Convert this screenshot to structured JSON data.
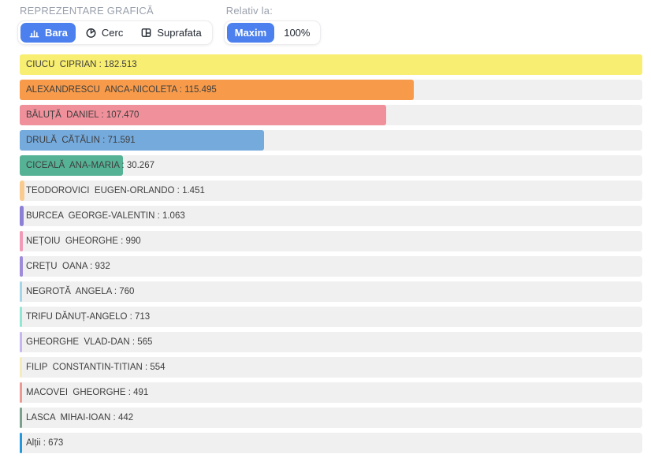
{
  "header": {
    "title": "REPREZENTARE GRAFICĂ",
    "relative_label": "Relativ la:",
    "accent_color": "#4b80ee",
    "chart_type_buttons": [
      {
        "label": "Bara",
        "icon": "bar-chart-icon",
        "active": true
      },
      {
        "label": "Cerc",
        "icon": "pie-chart-icon",
        "active": false
      },
      {
        "label": "Suprafata",
        "icon": "treemap-icon",
        "active": false
      }
    ],
    "relative_buttons": [
      {
        "label": "Maxim",
        "active": true
      },
      {
        "label": "100%",
        "active": false
      }
    ]
  },
  "chart_data": {
    "type": "bar",
    "orientation": "horizontal",
    "relative_to": "Maxim",
    "max_value": 182513,
    "track_color": "#f0f0f1",
    "categories": [
      "CIUCU CIPRIAN",
      "ALEXANDRESCU ANCA-NICOLETA",
      "BĂLUȚĂ DANIEL",
      "DRULĂ CĂTĂLIN",
      "CICEALĂ ANA-MARIA",
      "TEODOROVICI EUGEN-ORLANDO",
      "BURCEA GEORGE-VALENTIN",
      "NEȚOIU GHEORGHE",
      "CREȚU OANA",
      "NEGROTĂ ANGELA",
      "TRIFU DĂNUȚ-ANGELO",
      "GHEORGHE VLAD-DAN",
      "FILIP CONSTANTIN-TITIAN",
      "MACOVEI GHEORGHE",
      "LASCA MIHAI-IOAN",
      "Alții"
    ],
    "values": [
      182513,
      115495,
      107470,
      71591,
      30267,
      1451,
      1063,
      990,
      932,
      760,
      713,
      565,
      554,
      491,
      442,
      673
    ],
    "rows": [
      {
        "label": "CIUCU  CIPRIAN : 182.513",
        "color": "#f8ee71"
      },
      {
        "label": "ALEXANDRESCU  ANCA-NICOLETA : 115.495",
        "color": "#f79b4b"
      },
      {
        "label": "BĂLUȚĂ  DANIEL : 107.470",
        "color": "#f0909b"
      },
      {
        "label": "DRULĂ  CĂTĂLIN : 71.591",
        "color": "#75aadd"
      },
      {
        "label": "CICEALĂ  ANA-MARIA : 30.267",
        "color": "#56b295"
      },
      {
        "label": "TEODOROVICI  EUGEN-ORLANDO : 1.451",
        "color": "#f9cb90"
      },
      {
        "label": "BURCEA  GEORGE-VALENTIN : 1.063",
        "color": "#8c80d6"
      },
      {
        "label": "NEȚOIU  GHEORGHE : 990",
        "color": "#f09ab6"
      },
      {
        "label": "CREȚU  OANA : 932",
        "color": "#9e8cd9"
      },
      {
        "label": "NEGROTĂ  ANGELA : 760",
        "color": "#a5d6e8"
      },
      {
        "label": "TRIFU DĂNUȚ-ANGELO : 713",
        "color": "#90e7d4"
      },
      {
        "label": "GHEORGHE  VLAD-DAN : 565",
        "color": "#c7b7ef"
      },
      {
        "label": "FILIP  CONSTANTIN-TITIAN : 554",
        "color": "#f6ecba"
      },
      {
        "label": "MACOVEI  GHEORGHE : 491",
        "color": "#ea9b95"
      },
      {
        "label": "LASCA  MIHAI-IOAN : 442",
        "color": "#79a18d"
      },
      {
        "label": "Alții : 673",
        "color": "#2598dc"
      }
    ]
  }
}
